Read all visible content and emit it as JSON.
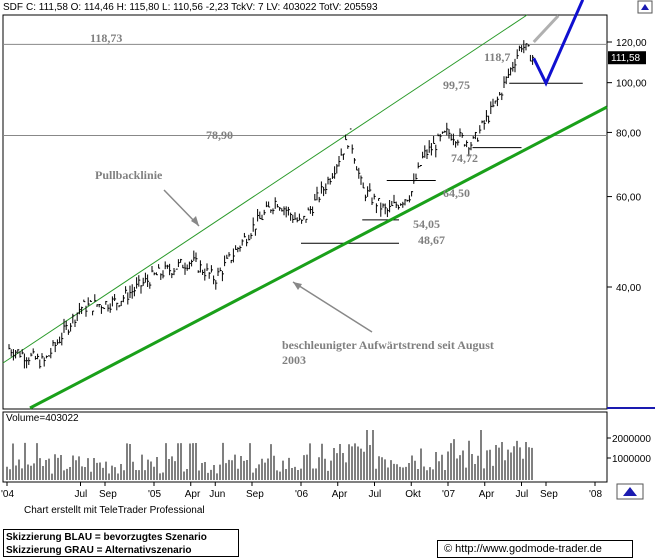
{
  "header": {
    "symbol": "SDF",
    "quote_line": "C: 111,58  O: 114,46  H: 115,80  L: 110,56  -2,23  TckV: 7  LV: 403022  TotV: 205593"
  },
  "price_axis": {
    "ticks": [
      "120,00",
      "100,00",
      "80,00",
      "60,00",
      "40,00"
    ],
    "last_price_badge": "111,58"
  },
  "volume_panel": {
    "label": "Volume=403022",
    "ticks": [
      "2000000",
      "1000000"
    ]
  },
  "time_axis": {
    "labels": [
      "'04",
      "Jul",
      "Sep",
      "'05",
      "Apr",
      "Jun",
      "Sep",
      "'06",
      "Apr",
      "Jul",
      "Okt",
      "'07",
      "Apr",
      "Jul",
      "Sep",
      "'08"
    ]
  },
  "annotations": {
    "level_118_73": "118,73",
    "level_118_near": "118,7",
    "level_99_75": "99,75",
    "level_78_90": "78,90",
    "level_74_72": "74,72",
    "level_64_50": "64,50",
    "level_54_05": "54,05",
    "level_48_67": "48,67",
    "pullback_label": "Pullbacklinie",
    "trend_label_line1": "beschleunigter Aufwärtstrend seit August",
    "trend_label_line2": "2003"
  },
  "footer": {
    "credit": "Chart erstellt mit TeleTrader Professional",
    "legend_blue": "Skizzierung BLAU = bevorzugtes Szenario",
    "legend_gray": "Skizzierung GRAU = Alternativszenario",
    "copyright": "©",
    "url": "http://www.godmode-trader.de"
  },
  "colors": {
    "trend_line": "#1aa01a",
    "channel_line": "#2a9a2a",
    "preferred_scenario": "#1010d0",
    "alternative_scenario": "#b0b0b0",
    "price_bars": "#000000",
    "annotation_text": "#808080",
    "axis_blue": "#1a1ab0"
  },
  "chart_data": {
    "type": "ohlc-bar",
    "scale": "log",
    "y_ticks": [
      120,
      100,
      80,
      60,
      40
    ],
    "x_range": [
      "2004-01",
      "2008-01"
    ],
    "last_close": 111.58,
    "levels": [
      118.73,
      99.75,
      78.9,
      74.72,
      64.5,
      54.05,
      48.67
    ],
    "close_path": [
      {
        "x": "2004-01",
        "y": 30.5
      },
      {
        "x": "2004-04",
        "y": 28.5
      },
      {
        "x": "2004-07",
        "y": 36.5
      },
      {
        "x": "2004-10",
        "y": 37.5
      },
      {
        "x": "2005-01",
        "y": 42.0
      },
      {
        "x": "2005-04",
        "y": 45.0
      },
      {
        "x": "2005-06",
        "y": 41.5
      },
      {
        "x": "2005-09",
        "y": 52.0
      },
      {
        "x": "2005-11",
        "y": 59.0
      },
      {
        "x": "2006-01",
        "y": 53.0
      },
      {
        "x": "2006-03",
        "y": 63.0
      },
      {
        "x": "2006-05",
        "y": 78.9
      },
      {
        "x": "2006-06",
        "y": 62.0
      },
      {
        "x": "2006-08",
        "y": 56.0
      },
      {
        "x": "2006-10",
        "y": 61.0
      },
      {
        "x": "2006-11",
        "y": 72.0
      },
      {
        "x": "2007-01",
        "y": 80.0
      },
      {
        "x": "2007-03",
        "y": 76.0
      },
      {
        "x": "2007-05",
        "y": 92.0
      },
      {
        "x": "2007-07",
        "y": 118.73
      },
      {
        "x": "2007-08",
        "y": 111.58
      }
    ],
    "scenarios": [
      {
        "name": "bevorzugtes Szenario",
        "color": "blue",
        "points": [
          {
            "x": "2007-08",
            "y": 111.58
          },
          {
            "x": "2007-09",
            "y": 99.75
          },
          {
            "x": "2007-12",
            "y": 145
          }
        ]
      },
      {
        "name": "Alternativszenario",
        "color": "gray",
        "points": [
          {
            "x": "2007-08",
            "y": 120
          },
          {
            "x": "2007-10",
            "y": 135
          }
        ]
      }
    ]
  }
}
